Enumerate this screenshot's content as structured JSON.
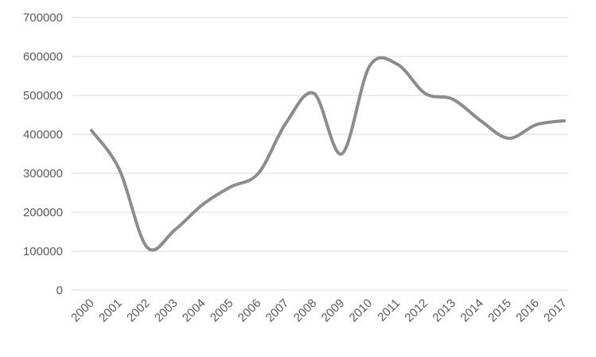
{
  "chart_data": {
    "type": "line",
    "categories": [
      "2000",
      "2001",
      "2002",
      "2003",
      "2004",
      "2005",
      "2006",
      "2007",
      "2008",
      "2009",
      "2010",
      "2011",
      "2012",
      "2013",
      "2014",
      "2015",
      "2016",
      "2017"
    ],
    "series": [
      {
        "values": [
          410000,
          310000,
          110000,
          155000,
          220000,
          265000,
          300000,
          430000,
          505000,
          350000,
          575000,
          580000,
          505000,
          490000,
          435000,
          390000,
          425000,
          435000
        ],
        "color": "#8c8c8c"
      }
    ],
    "y_ticks": [
      "0",
      "100000",
      "200000",
      "300000",
      "400000",
      "500000",
      "600000",
      "700000"
    ],
    "ylim": [
      0,
      700000
    ],
    "grid": true,
    "legend": "none",
    "smooth": true
  }
}
